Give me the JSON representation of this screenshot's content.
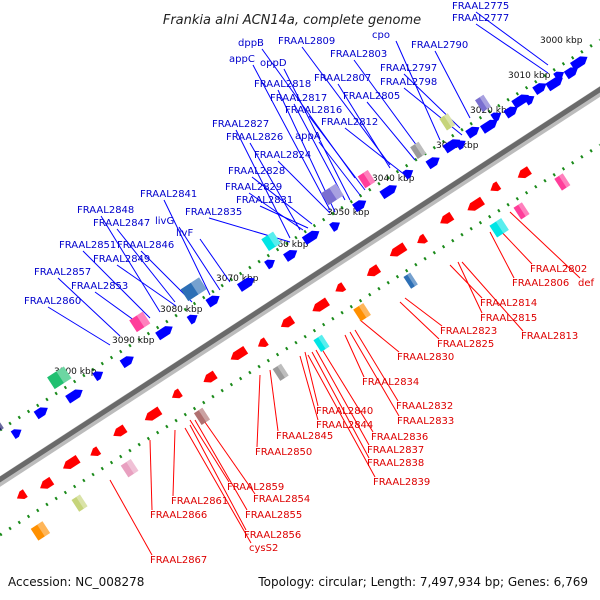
{
  "header": {
    "title": "Frankia alni ACN14a, complete genome"
  },
  "footer": {
    "accession": "Accession: NC_008278",
    "summary": "Topology: circular; Length: 7,497,934 bp; Genes: 6,769"
  },
  "scale_labels": [
    "3000 kbp",
    "3010 kbp",
    "3020 kbp",
    "3030 kbp",
    "3040 kbp",
    "3050 kbp",
    "3060 kbp",
    "3070 kbp",
    "3080 kbp",
    "3090 kbp",
    "3100 kbp"
  ],
  "forward_labels": [
    "FRAAL2775",
    "FRAAL2777",
    "cpo",
    "FRAAL2790",
    "dppB",
    "FRAAL2809",
    "FRAAL2803",
    "appC",
    "oppD",
    "FRAAL2797",
    "FRAAL2807",
    "FRAAL2798",
    "FRAAL2818",
    "FRAAL2805",
    "FRAAL2817",
    "FRAAL2816",
    "FRAAL2812",
    "FRAAL2827",
    "appA",
    "FRAAL2826",
    "FRAAL2824",
    "FRAAL2828",
    "FRAAL2829",
    "FRAAL2841",
    "FRAAL2831",
    "FRAAL2848",
    "FRAAL2835",
    "FRAAL2847",
    "livG",
    "livF",
    "FRAAL2851",
    "FRAAL2846",
    "FRAAL2849",
    "FRAAL2857",
    "FRAAL2853",
    "FRAAL2860"
  ],
  "reverse_labels": [
    "FRAAL2802",
    "FRAAL2806",
    "def",
    "FRAAL2814",
    "FRAAL2815",
    "FRAAL2813",
    "FRAAL2823",
    "FRAAL2825",
    "FRAAL2830",
    "FRAAL2834",
    "FRAAL2832",
    "FRAAL2840",
    "FRAAL2833",
    "FRAAL2844",
    "FRAAL2845",
    "FRAAL2836",
    "FRAAL2837",
    "FRAAL2838",
    "FRAAL2850",
    "FRAAL2839",
    "FRAAL2859",
    "FRAAL2861",
    "FRAAL2854",
    "FRAAL2866",
    "FRAAL2855",
    "FRAAL2856",
    "cysS2",
    "FRAAL2867"
  ],
  "colors": {
    "forward": "#0000ff",
    "reverse": "#ff0000",
    "label_forward": "#0000cc",
    "label_reverse": "#dd0000",
    "scale_dots": "#1a8a1a",
    "backbone": "#7a7a7a",
    "rna_palette": [
      "#2d6fb5",
      "#7a6fd0",
      "#ff3d9a",
      "#00e5e5",
      "#ff9000",
      "#20c070",
      "#9a9a9a",
      "#c6d47a",
      "#b07070",
      "#1a1a6a",
      "#e8a0c0"
    ]
  }
}
